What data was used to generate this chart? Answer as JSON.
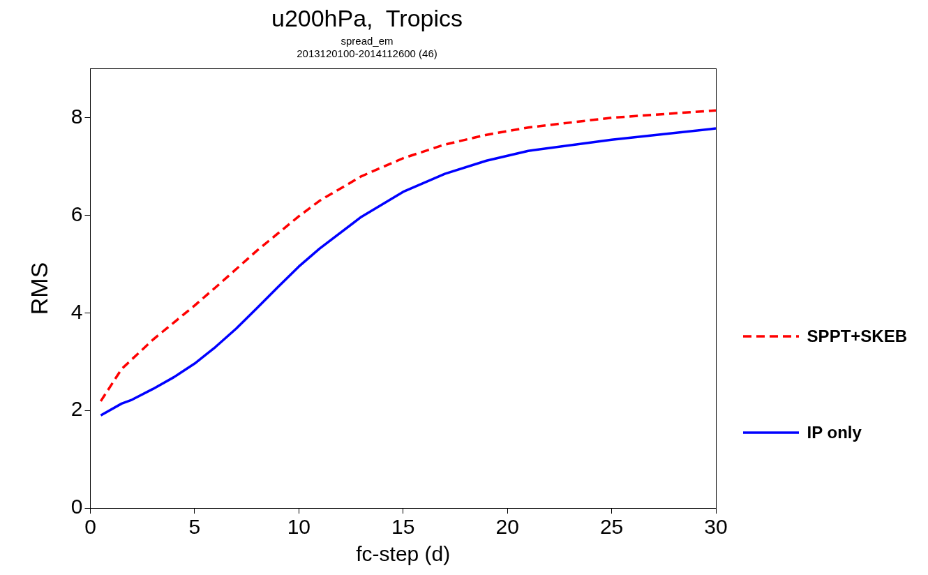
{
  "chart_data": {
    "type": "line",
    "title": "u200hPa,  Tropics",
    "subtitle": "spread_em\n2013120100-2014112600 (46)",
    "xlabel": "fc-step (d)",
    "ylabel": "RMS",
    "x": [
      0.5,
      1.5,
      2,
      3,
      4,
      5,
      6,
      7,
      8,
      9,
      10,
      11,
      13,
      15,
      17,
      19,
      21,
      25,
      30
    ],
    "series": [
      {
        "name": "SPPT+SKEB",
        "color": "#ff0000",
        "line_style": "dashed",
        "values": [
          2.19,
          2.85,
          3.05,
          3.45,
          3.8,
          4.15,
          4.52,
          4.9,
          5.28,
          5.63,
          5.98,
          6.3,
          6.8,
          7.17,
          7.45,
          7.65,
          7.8,
          8.0,
          8.15
        ]
      },
      {
        "name": "IP only",
        "color": "#0000ff",
        "line_style": "solid",
        "values": [
          1.9,
          2.14,
          2.22,
          2.44,
          2.68,
          2.96,
          3.3,
          3.68,
          4.1,
          4.53,
          4.95,
          5.32,
          5.97,
          6.48,
          6.85,
          7.12,
          7.32,
          7.55,
          7.78
        ]
      }
    ],
    "xlim": [
      0,
      30
    ],
    "xticks": [
      0,
      5,
      10,
      15,
      20,
      25,
      30
    ],
    "ylim": [
      0,
      9
    ],
    "yticks": [
      0,
      2,
      4,
      6,
      8
    ],
    "grid": false,
    "legend": "right",
    "marker": "none"
  }
}
